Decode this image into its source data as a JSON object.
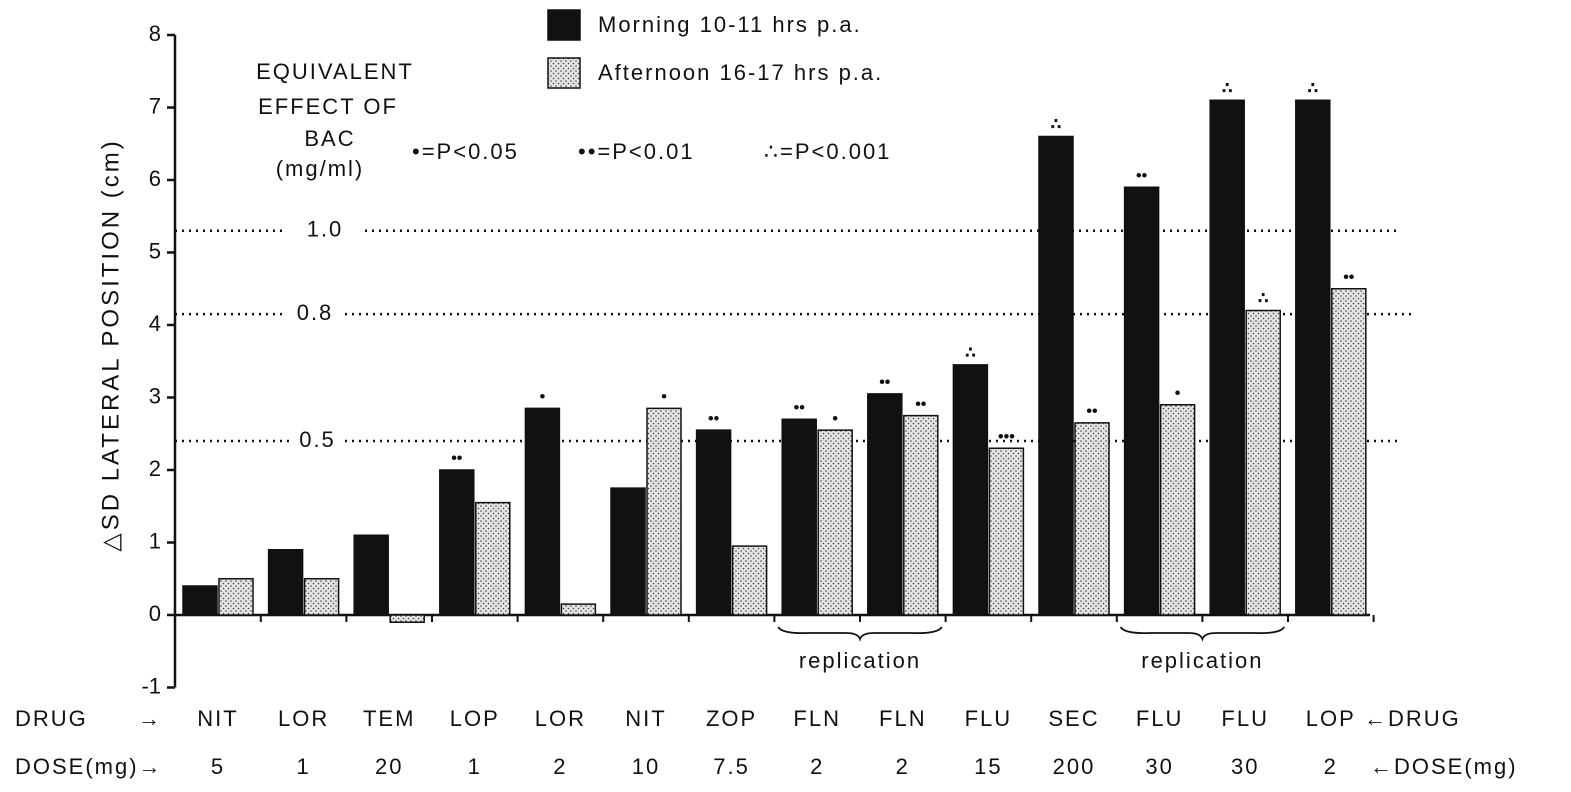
{
  "chart_data": {
    "type": "bar",
    "y_axis_label": "△SD LATERAL POSITION (cm)",
    "ylim": [
      -1,
      8
    ],
    "yticks": [
      -1,
      0,
      1,
      2,
      3,
      4,
      5,
      6,
      7,
      8
    ],
    "drug_row": {
      "left": "DRUG",
      "left_arrow": "→",
      "right": "←DRUG"
    },
    "dose_row": {
      "left": "DOSE(mg)→",
      "right": "←DOSE(mg)"
    },
    "categories": [
      "NIT",
      "LOR",
      "TEM",
      "LOP",
      "LOR",
      "NIT",
      "ZOP",
      "FLN",
      "FLN",
      "FLU",
      "SEC",
      "FLU",
      "FLU",
      "LOP"
    ],
    "doses": [
      "5",
      "1",
      "20",
      "1",
      "2",
      "10",
      "7.5",
      "2",
      "2",
      "15",
      "200",
      "30",
      "30",
      "2"
    ],
    "series": [
      {
        "name": "Morning 10-11 hrs p.a.",
        "color": "#111111",
        "values": [
          0.4,
          0.9,
          1.1,
          2.0,
          2.85,
          1.75,
          2.55,
          2.7,
          3.05,
          3.45,
          6.6,
          5.9,
          7.1,
          7.1
        ],
        "significance": [
          null,
          null,
          null,
          "••",
          "•",
          null,
          "••",
          "••",
          "••",
          "∴",
          "∴",
          "••",
          "∴",
          "∴"
        ]
      },
      {
        "name": "Afternoon 16-17 hrs p.a.",
        "color": "#e4e4e4",
        "pattern": "stipple",
        "values": [
          0.5,
          0.5,
          -0.1,
          1.55,
          0.15,
          2.85,
          0.95,
          2.55,
          2.75,
          2.3,
          2.65,
          2.9,
          4.2,
          4.5
        ],
        "significance": [
          null,
          null,
          null,
          null,
          null,
          "•",
          null,
          "•",
          "••",
          "•••",
          "••",
          "•",
          "∴",
          "••"
        ]
      }
    ],
    "bac_title": [
      "EQUIVALENT",
      "EFFECT OF",
      "BAC",
      "(mg/ml)"
    ],
    "bac_lines": [
      {
        "value": 5.3,
        "label": "1.0"
      },
      {
        "value": 4.15,
        "label": "0.8"
      },
      {
        "value": 2.4,
        "label": "0.5"
      }
    ],
    "significance_key": [
      "•=P<0.05",
      "••=P<0.01",
      "∴=P<0.001"
    ],
    "annotations": [
      "replication",
      "replication"
    ]
  }
}
